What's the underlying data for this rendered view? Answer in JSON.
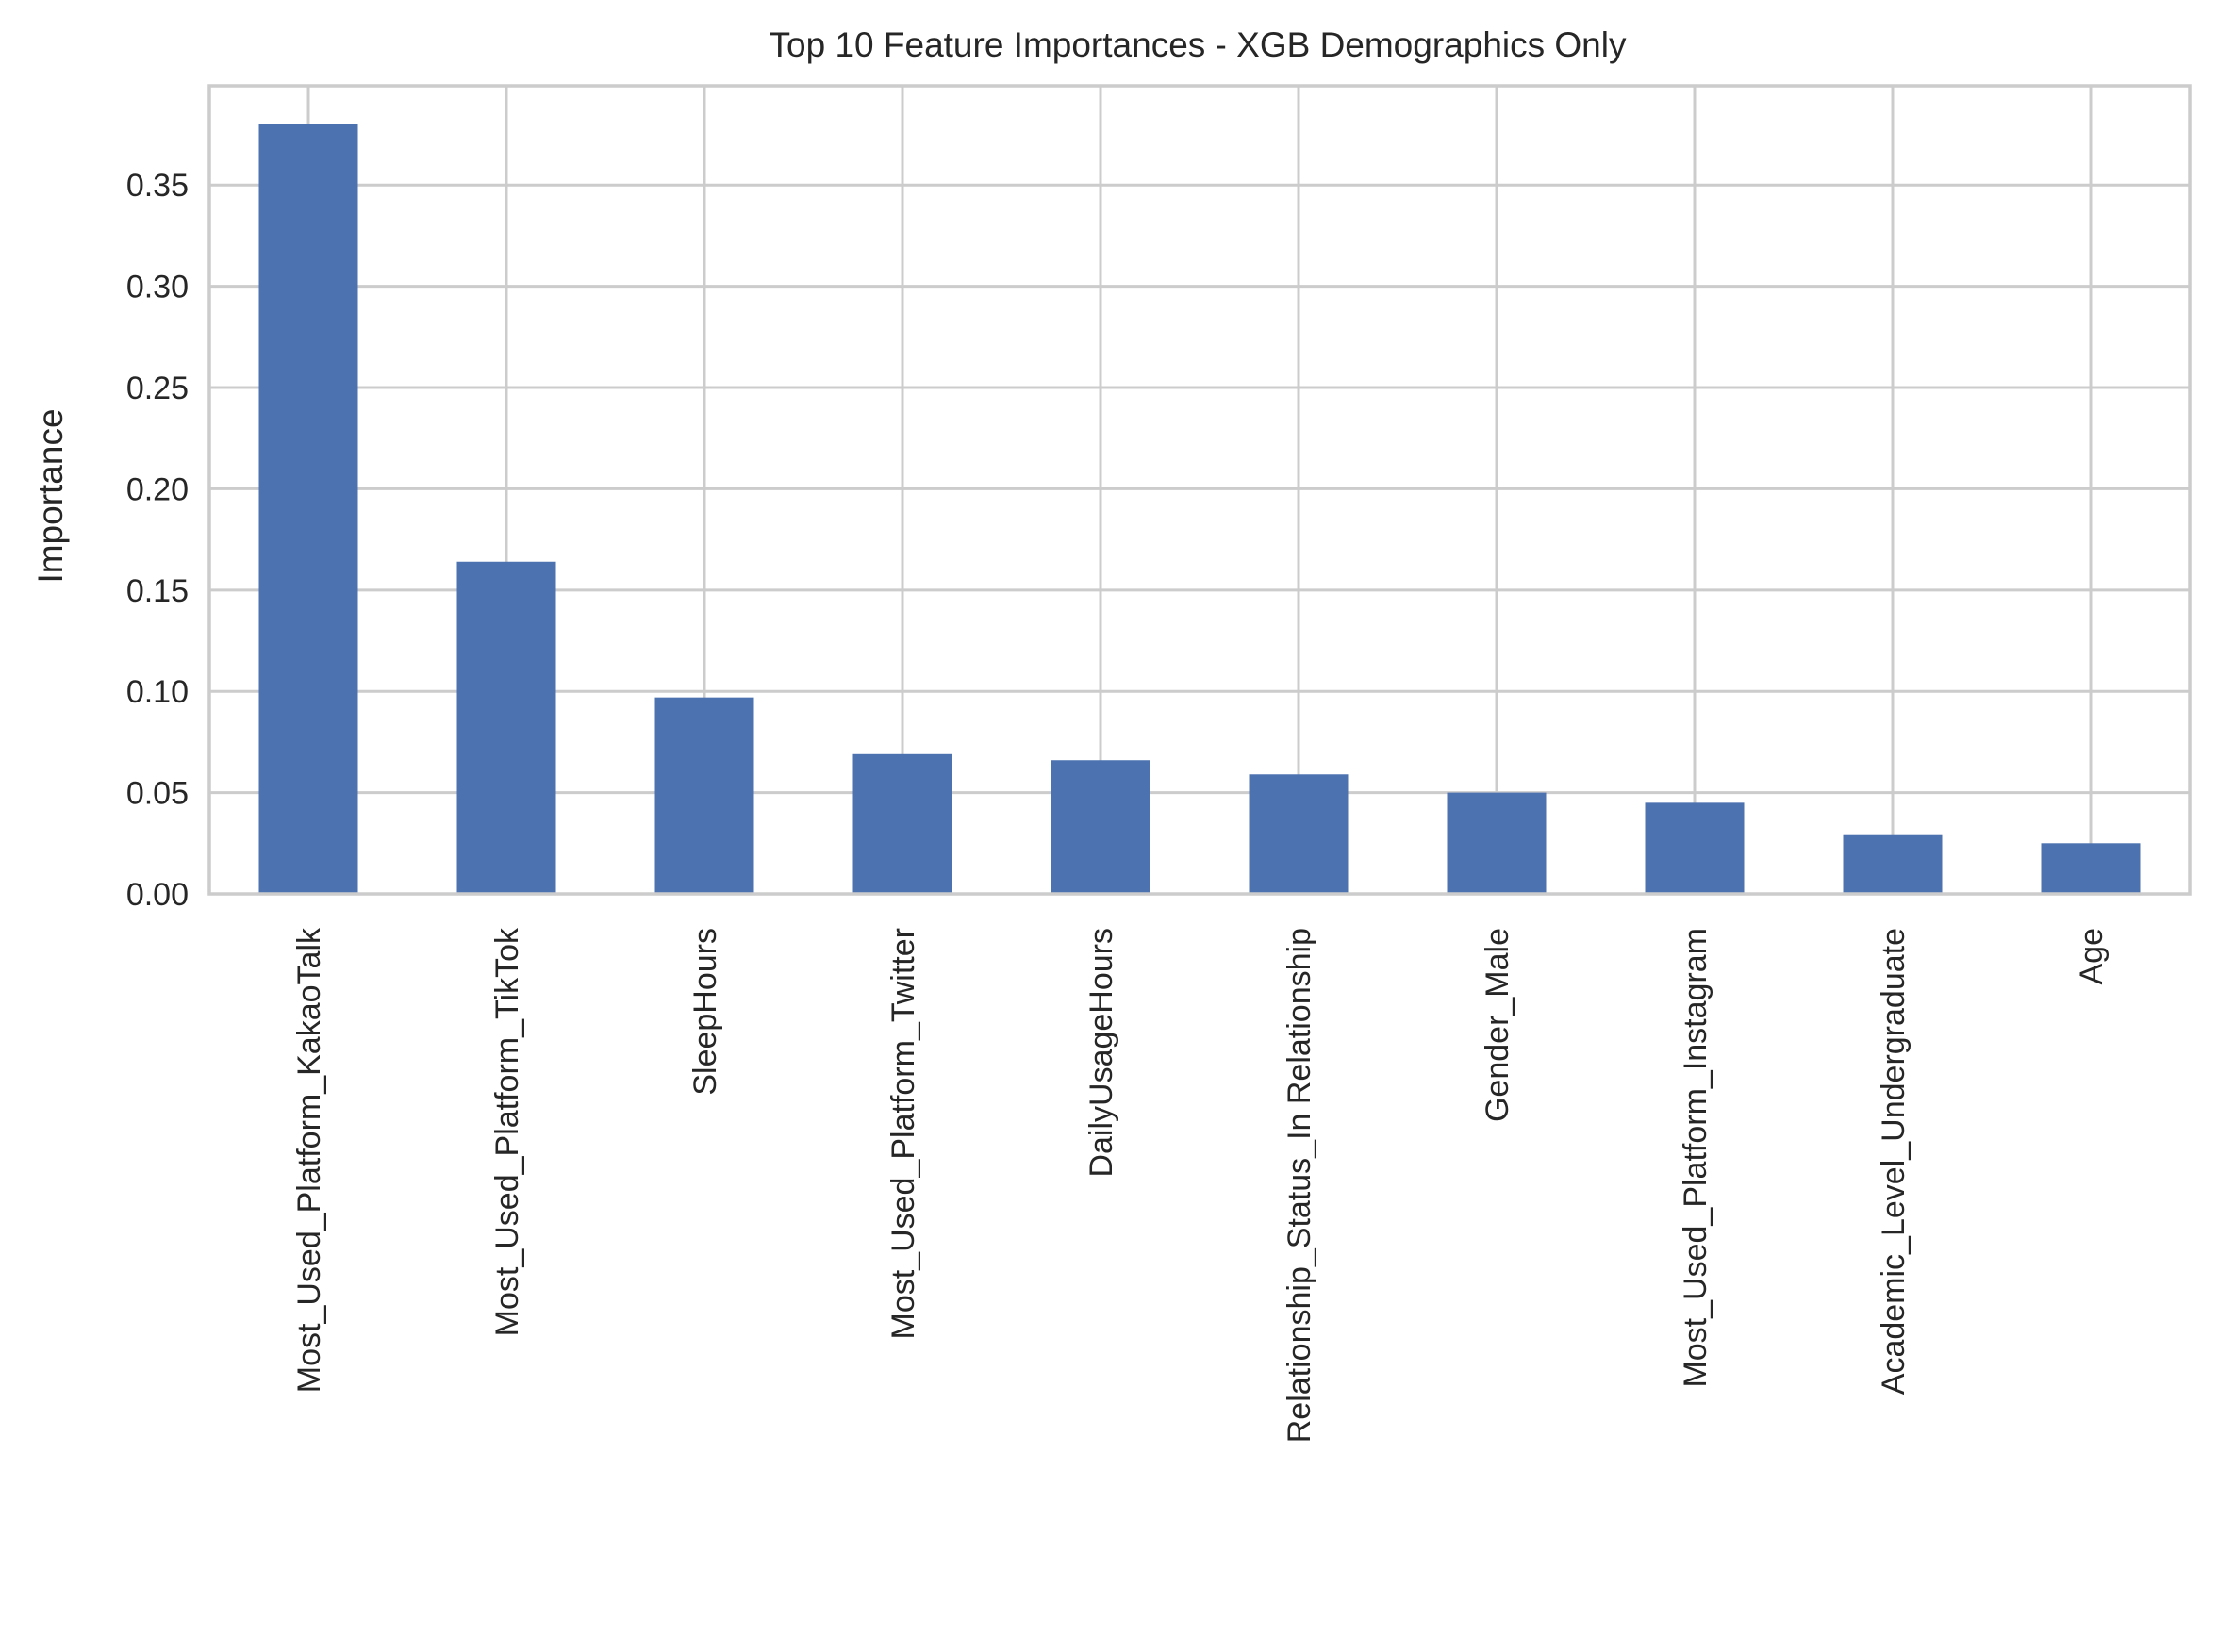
{
  "chart_data": {
    "type": "bar",
    "title": "Top 10 Feature Importances - XGB Demographics Only",
    "xlabel": "",
    "ylabel": "Importance",
    "ylim": [
      0,
      0.399
    ],
    "yticks": [
      "0.00",
      "0.05",
      "0.10",
      "0.15",
      "0.20",
      "0.25",
      "0.30",
      "0.35"
    ],
    "grid": true,
    "legend": "none",
    "bar_color": "#4c72b0",
    "categories": [
      "Most_Used_Platform_KakaoTalk",
      "Most_Used_Platform_TikTok",
      "SleepHours",
      "Most_Used_Platform_Twitter",
      "DailyUsageHours",
      "Relationship_Status_In Relationship",
      "Gender_Male",
      "Most_Used_Platform_Instagram",
      "Academic_Level_Undergraduate",
      "Age"
    ],
    "values": [
      0.38,
      0.164,
      0.097,
      0.069,
      0.066,
      0.059,
      0.05,
      0.045,
      0.029,
      0.025
    ]
  }
}
